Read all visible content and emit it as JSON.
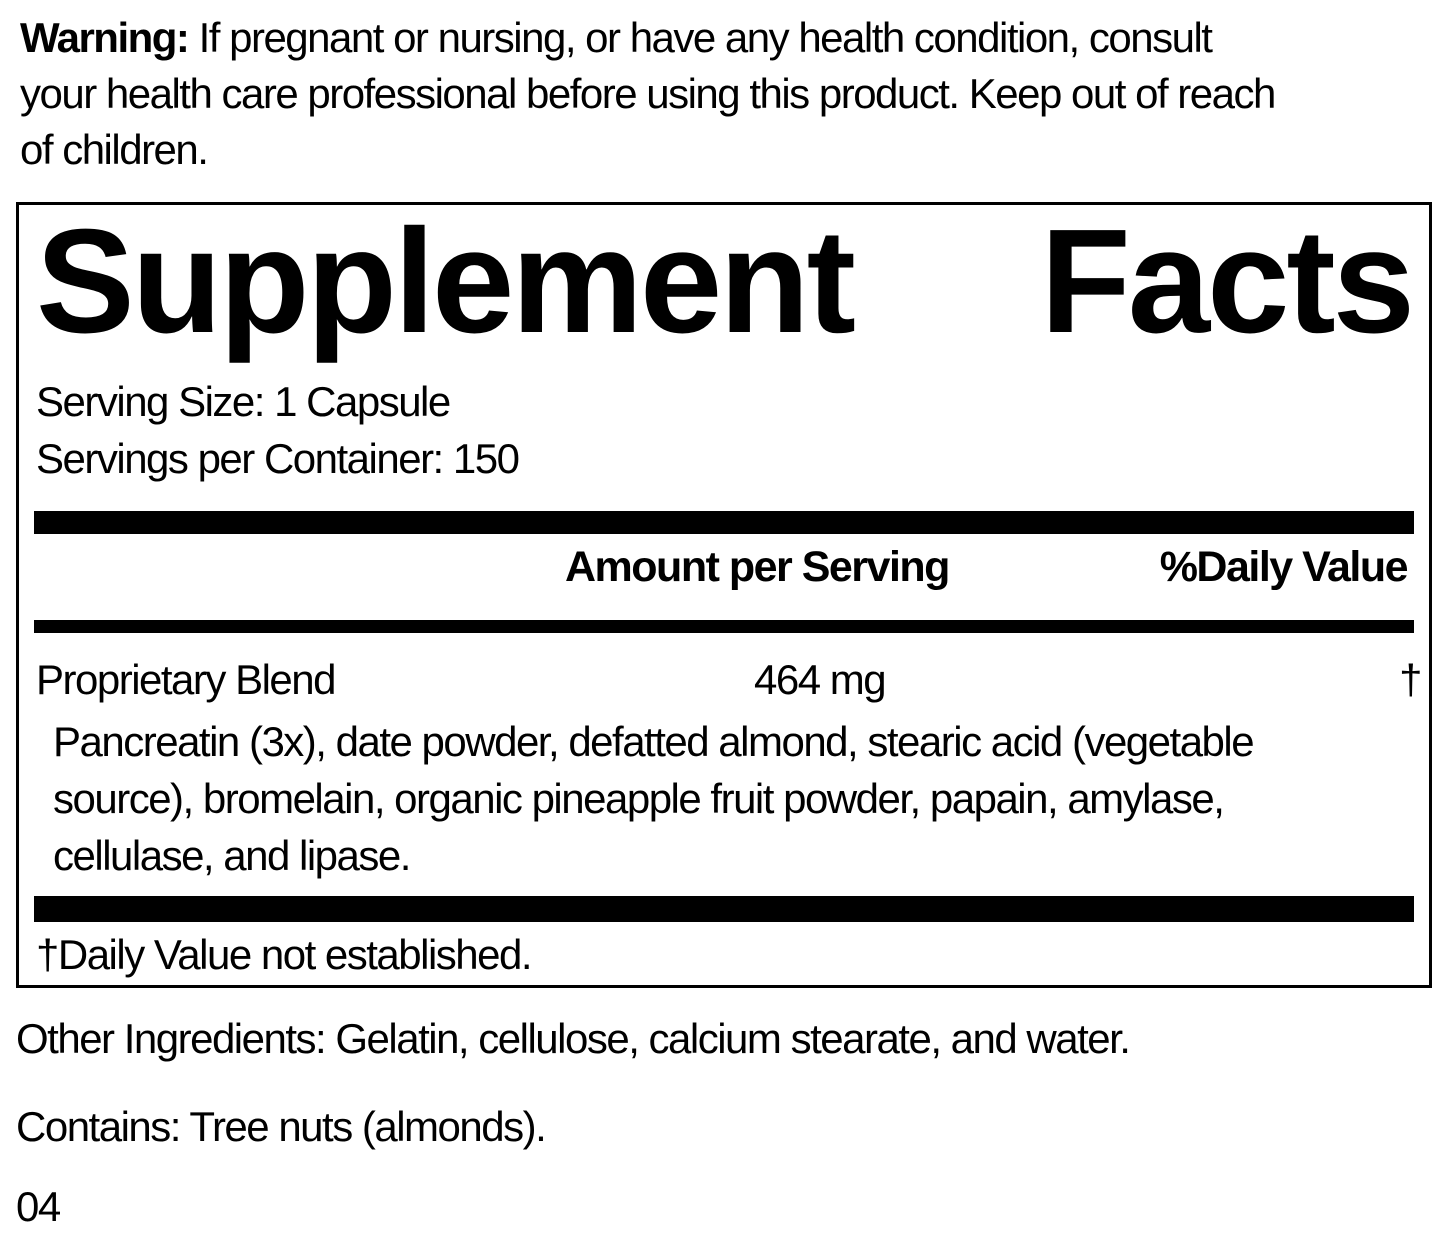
{
  "colors": {
    "text": "#000000",
    "background": "#ffffff",
    "divider": "#000000"
  },
  "warning": {
    "label": "Warning:",
    "line1_rest": " If pregnant or nursing, or have any health condition, consult",
    "line2": "your health care professional before using this product. Keep out of reach",
    "line3": "of children."
  },
  "panel": {
    "title": {
      "word1": "Supplement",
      "word2": "Facts"
    },
    "serving_size": "Serving Size: 1 Capsule",
    "servings_per_container": "Servings per Container: 150",
    "columns": {
      "amount_header": "Amount per Serving",
      "daily_value_header": "%Daily Value"
    },
    "blend": {
      "name": "Proprietary Blend",
      "amount": "464 mg",
      "daily_value": "†",
      "description": [
        "Pancreatin (3x), date powder, defatted almond, stearic acid (vegetable",
        "source), bromelain, organic pineapple fruit powder, papain, amylase,",
        "cellulase, and lipase."
      ]
    },
    "footnote": "†Daily Value not established."
  },
  "footer": {
    "other_ingredients": "Other Ingredients: Gelatin, cellulose, calcium stearate, and water.",
    "contains": "Contains: Tree nuts (almonds).",
    "code": "04"
  }
}
